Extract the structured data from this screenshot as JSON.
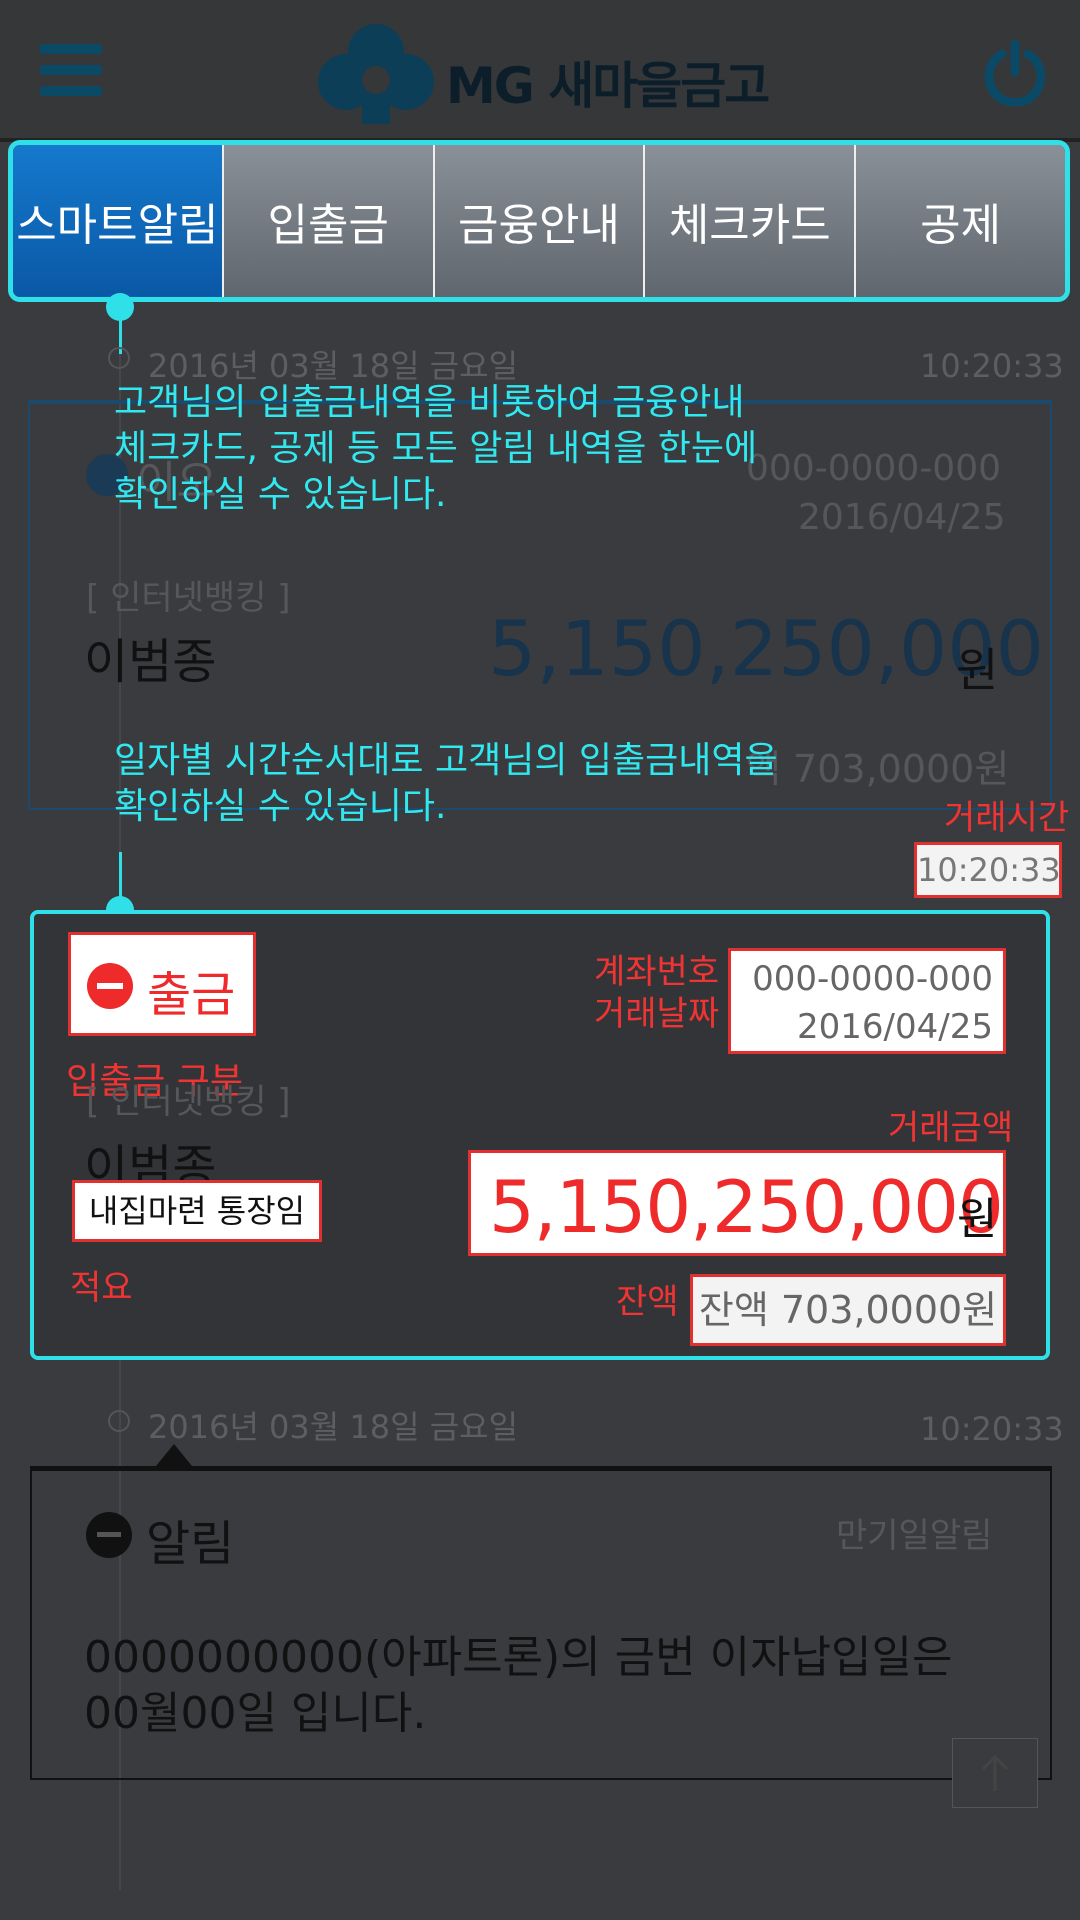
{
  "header": {
    "logo_text": "MG 새마을금고",
    "menu_icon": "hamburger-menu-icon",
    "power_icon": "power-icon"
  },
  "tabs": [
    {
      "label": "스마트알림",
      "active": true
    },
    {
      "label": "입출금",
      "active": false
    },
    {
      "label": "금융안내",
      "active": false
    },
    {
      "label": "체크카드",
      "active": false
    },
    {
      "label": "공제",
      "active": false
    }
  ],
  "callouts": {
    "top": [
      "고객님의 입출금내역을 비롯하여 금융안내",
      "체크카드, 공제 등 모든 알림 내역을 한눈에",
      "확인하실 수 있습니다."
    ],
    "middle": [
      "일자별 시간순서대로 고객님의 입출금내역을",
      "확인하실 수 있습니다."
    ]
  },
  "entry1": {
    "date": "2016년 03월 18일 금요일",
    "time": "10:20:33",
    "type_partial": "이오",
    "account": "000-0000-000",
    "tx_date": "2016/04/25",
    "channel": "[ 인터넷뱅킹 ]",
    "name": "이범종",
    "amount": "5,150,250,000",
    "currency": "원",
    "balance_partial": "액 703,0000원"
  },
  "highlight": {
    "time_label": "거래시간",
    "time": "10:20:33",
    "type": "출금",
    "type_label": "입출금 구분",
    "account_label": "계좌번호",
    "date_label": "거래날짜",
    "account": "000-0000-000",
    "tx_date": "2016/04/25",
    "channel": "[ 인터넷뱅킹 ]",
    "name": "이범종",
    "memo": "내집마련 통장임",
    "memo_label": "적요",
    "amount_label": "거래금액",
    "amount": "5,150,250,000",
    "currency": "원",
    "balance_label": "잔액",
    "balance": "잔액 703,0000원"
  },
  "entry2": {
    "date": "2016년 03월 18일 금요일",
    "time": "10:20:33",
    "type": "알림",
    "category": "만기일알림",
    "message_line1": "0000000000(아파트론)의 금번 이자납입일은",
    "message_line2": "00월00일 입니다."
  },
  "colors": {
    "accent": "#30e0e8",
    "active_tab": "#0a63b4",
    "alert_red": "#f03434"
  }
}
